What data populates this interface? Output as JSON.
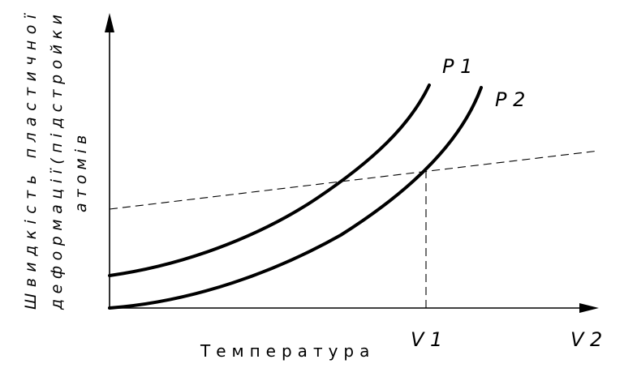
{
  "diagram": {
    "y_axis_title_lines": [
      "Швидкість пластичної",
      "деформації(підстройки",
      "атомів"
    ],
    "x_axis_title": "Температура",
    "curve_labels": {
      "p1": "P 1",
      "p2": "P 2"
    },
    "tick_labels": {
      "v1": "V 1",
      "v2": "V 2"
    }
  }
}
